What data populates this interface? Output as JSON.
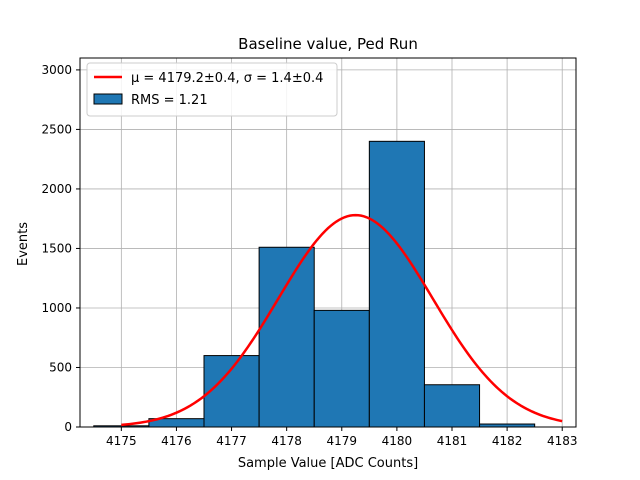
{
  "chart_data": {
    "type": "bar",
    "title": "Baseline value, Ped Run",
    "xlabel": "Sample Value [ADC Counts]",
    "ylabel": "Events",
    "xlim": [
      4174.25,
      4183.25
    ],
    "ylim": [
      0,
      3100
    ],
    "xticks": [
      4175,
      4176,
      4177,
      4178,
      4179,
      4180,
      4181,
      4182,
      4183
    ],
    "yticks": [
      0,
      500,
      1000,
      1500,
      2000,
      2500,
      3000
    ],
    "grid": true,
    "legend_position": "top-left",
    "histogram": {
      "name": "RMS = 1.21",
      "color": "#1f77b4",
      "edgecolor": "#000000",
      "bins": [
        {
          "left": 4174.5,
          "right": 4175.5,
          "count": 10
        },
        {
          "left": 4175.5,
          "right": 4176.5,
          "count": 70
        },
        {
          "left": 4176.5,
          "right": 4177.5,
          "count": 600
        },
        {
          "left": 4177.5,
          "right": 4178.5,
          "count": 1510
        },
        {
          "left": 4178.5,
          "right": 4179.5,
          "count": 980
        },
        {
          "left": 4179.5,
          "right": 4180.5,
          "count": 2400
        },
        {
          "left": 4180.5,
          "right": 4181.5,
          "count": 355
        },
        {
          "left": 4181.5,
          "right": 4182.5,
          "count": 25
        }
      ]
    },
    "fit": {
      "name": "μ = 4179.2±0.4, σ = 1.4±0.4",
      "color": "#ff0000",
      "type": "gaussian",
      "mu": 4179.25,
      "sigma": 1.4,
      "amplitude": 1780,
      "x_start": 4175,
      "x_end": 4183
    }
  }
}
